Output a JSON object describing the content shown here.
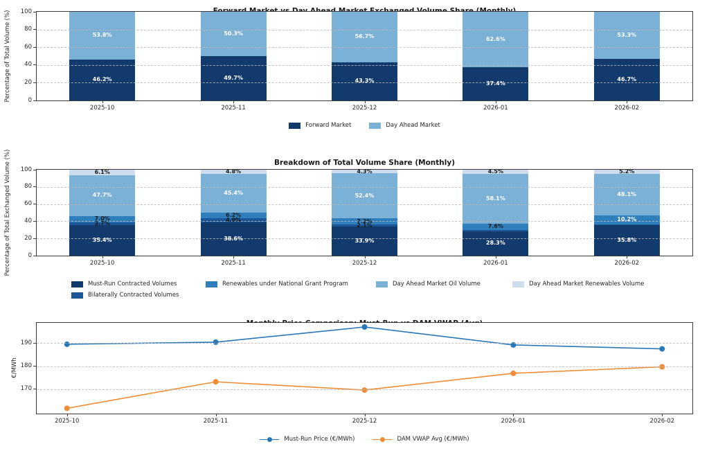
{
  "figure": {
    "background": "#ffffff",
    "grid_color": "#b9b9b9",
    "spine_color": "#3a3a3a",
    "text_color": "#262626"
  },
  "chart_data": [
    {
      "type": "bar",
      "stacked": true,
      "title": "Forward Market vs Day Ahead Market Exchanged Volume Share (Monthly)",
      "ylabel": "Percentage of Total Volume (%)",
      "categories": [
        "2025-10",
        "2025-11",
        "2025-12",
        "2026-01",
        "2026-02"
      ],
      "yticks": [
        0,
        20,
        40,
        60,
        80,
        100
      ],
      "ylim": [
        0,
        100
      ],
      "grid": true,
      "legend_position": "bottom",
      "series": [
        {
          "name": "Forward Market",
          "color": "#123a6d",
          "values": [
            46.2,
            49.7,
            43.3,
            37.4,
            46.7
          ],
          "labels": [
            "46.2%",
            "49.7%",
            "43.3%",
            "37.4%",
            "46.7%"
          ]
        },
        {
          "name": "Day Ahead Market",
          "color": "#7bb1d7",
          "values": [
            53.8,
            50.3,
            56.7,
            62.6,
            53.3
          ],
          "labels": [
            "53.8%",
            "50.3%",
            "56.7%",
            "62.6%",
            "53.3%"
          ]
        }
      ]
    },
    {
      "type": "bar",
      "stacked": true,
      "title": "Breakdown of Total Volume Share (Monthly)",
      "ylabel": "Percentage of Total Exchanged Volume (%)",
      "categories": [
        "2025-10",
        "2025-11",
        "2025-12",
        "2026-01",
        "2026-02"
      ],
      "yticks": [
        0,
        20,
        40,
        60,
        80,
        100
      ],
      "ylim": [
        0,
        100
      ],
      "grid": true,
      "legend_position": "bottom",
      "legend_columns": 4,
      "series": [
        {
          "name": "Must-Run Contracted Volumes",
          "color": "#123a6d",
          "values": [
            35.4,
            38.6,
            33.9,
            28.3,
            35.8
          ],
          "labels": [
            "35.4%",
            "38.6%",
            "33.9%",
            "28.3%",
            "35.8%"
          ]
        },
        {
          "name": "Bilaterally Contracted Volumes",
          "color": "#1b5699",
          "values": [
            3.7,
            4.9,
            2.1,
            1.5,
            0.7
          ],
          "labels": [
            "3.7%",
            "4.9%",
            "2.1%",
            "",
            ""
          ]
        },
        {
          "name": "Renewables under National Grant Program",
          "color": "#2f7fbc",
          "values": [
            7.0,
            6.2,
            7.2,
            7.6,
            10.2
          ],
          "labels": [
            "7.0%",
            "6.2%",
            "7.2%",
            "7.6%",
            "10.2%"
          ]
        },
        {
          "name": "Day Ahead Market Oil Volume",
          "color": "#7bb1d7",
          "values": [
            47.7,
            45.4,
            52.4,
            58.1,
            48.1
          ],
          "labels": [
            "47.7%",
            "45.4%",
            "52.4%",
            "58.1%",
            "48.1%"
          ]
        },
        {
          "name": "Day Ahead Market Renewables Volume",
          "color": "#cddded",
          "values": [
            6.1,
            4.8,
            4.3,
            4.5,
            5.2
          ],
          "labels": [
            "6.1%",
            "4.8%",
            "4.3%",
            "4.5%",
            "5.2%"
          ]
        }
      ]
    },
    {
      "type": "line",
      "title": "Monthly Price Comparison: Must-Run vs DAM VWAP (Avg)",
      "ylabel": "€/MWh",
      "x": [
        "2025-10",
        "2025-11",
        "2025-12",
        "2026-01",
        "2026-02"
      ],
      "yticks": [
        170,
        180,
        190
      ],
      "ylim": [
        159.4,
        198.8
      ],
      "grid": true,
      "legend_position": "bottom",
      "series": [
        {
          "name": "Must-Run Price (€/MWh)",
          "color": "#2878b8",
          "marker": "circle",
          "values": [
            189.5,
            190.4,
            197.0,
            189.2,
            187.5
          ]
        },
        {
          "name": "DAM VWAP Avg (€/MWh)",
          "color": "#f08c33",
          "marker": "circle",
          "values": [
            161.7,
            173.2,
            169.6,
            176.9,
            179.7
          ]
        }
      ]
    }
  ]
}
